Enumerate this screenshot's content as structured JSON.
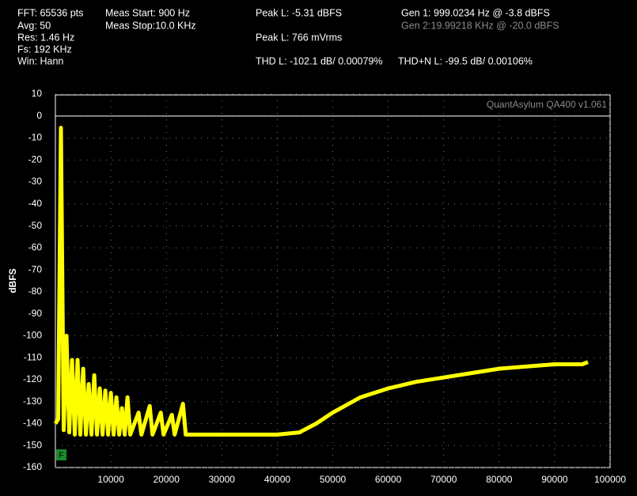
{
  "readouts": [
    "FFT: 65536 pts",
    "Avg: 50",
    "Res: 1.46 Hz",
    "Fs: 192 KHz",
    "Win: Hann",
    "Meas Start: 900 Hz",
    "Meas Stop:10.0 KHz",
    "Peak L: -5.31 dBFS",
    "Peak L: 766 mVrms",
    "THD L: -102.1 dB/ 0.00079%",
    "THD+N L: -99.5 dB/ 0.00106%",
    "Gen 1: 999.0234 Hz @ -3.8  dBFS",
    "Gen 2:19.99218 KHz @ -20.0  dBFS"
  ],
  "badge": "F",
  "chart_data": {
    "type": "line",
    "watermark": "QuantAsylum QA400 v1.061",
    "y_label": "dBFS",
    "x": [
      0,
      500,
      999,
      1500,
      2000,
      2500,
      3000,
      3500,
      4000,
      4500,
      5000,
      5500,
      6000,
      6500,
      7000,
      7500,
      8000,
      8500,
      9000,
      9500,
      10000,
      10500,
      11000,
      11500,
      12000,
      12500,
      13000,
      13500,
      15000,
      15500,
      17000,
      17500,
      19000,
      19500,
      21000,
      21500,
      23000,
      23500,
      30000,
      40000,
      44000,
      47000,
      50000,
      55000,
      60000,
      65000,
      70000,
      75000,
      80000,
      85000,
      90000,
      95000,
      96000
    ],
    "values": [
      -140,
      -138,
      -5.3,
      -143,
      -100,
      -144,
      -111,
      -145,
      -111,
      -145,
      -115,
      -145,
      -122,
      -145,
      -118,
      -145,
      -124,
      -145,
      -125,
      -145,
      -126,
      -145,
      -128,
      -145,
      -133,
      -145,
      -128,
      -145,
      -135,
      -145,
      -132,
      -145,
      -135,
      -145,
      -136,
      -145,
      -131,
      -145,
      -145,
      -145,
      -144,
      -140,
      -135,
      -128,
      -124,
      -121,
      -119,
      -117,
      -115,
      -114,
      -113,
      -113,
      -112
    ],
    "color": "#ffff00",
    "xlim": [
      0,
      100000
    ],
    "ylim": [
      -160,
      10
    ],
    "xticks": [
      10000,
      20000,
      30000,
      40000,
      50000,
      60000,
      70000,
      80000,
      90000,
      100000
    ],
    "yticks": [
      10,
      0,
      -10,
      -20,
      -30,
      -40,
      -50,
      -60,
      -70,
      -80,
      -90,
      -100,
      -110,
      -120,
      -130,
      -140,
      -150,
      -160
    ],
    "reference_line": 0,
    "grid": true
  }
}
